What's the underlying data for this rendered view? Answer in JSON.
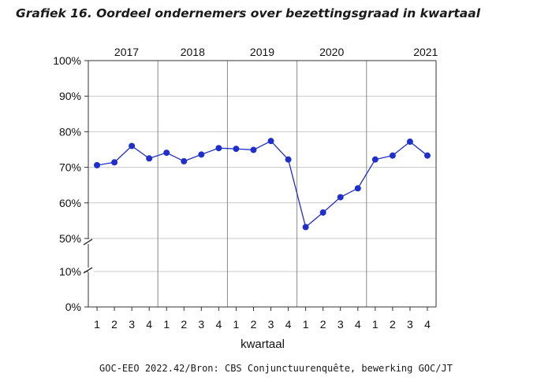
{
  "title": "Grafiek 16. Oordeel ondernemers over bezettingsgraad in kwartaal",
  "source": "GOC-EEO 2022.42/Bron: CBS Conjunctuurenquête, bewerking GOC/JT",
  "chart_data": {
    "type": "line",
    "xlabel": "kwartaal",
    "ylabel": "",
    "years": [
      "2017",
      "2018",
      "2019",
      "2020",
      "2021"
    ],
    "quarters": [
      "1",
      "2",
      "3",
      "4"
    ],
    "yticks_upper": [
      "100%",
      "90%",
      "80%",
      "70%",
      "60%",
      "50%"
    ],
    "yticks_lower": [
      "10%",
      "0%"
    ],
    "ylim_upper": [
      50,
      100
    ],
    "ylim_lower": [
      0,
      10
    ],
    "axis_break": true,
    "grid": true,
    "color": "#1f2fcc",
    "series": [
      {
        "x": [
          "2017 Q1",
          "2017 Q2",
          "2017 Q3",
          "2017 Q4",
          "2018 Q1",
          "2018 Q2",
          "2018 Q3",
          "2018 Q4",
          "2019 Q1",
          "2019 Q2",
          "2019 Q3",
          "2019 Q4",
          "2020 Q1",
          "2020 Q2",
          "2020 Q3",
          "2020 Q4",
          "2021 Q1",
          "2021 Q2",
          "2021 Q3",
          "2021 Q4"
        ],
        "values": [
          70.6,
          71.4,
          76.0,
          72.5,
          74.1,
          71.7,
          73.6,
          75.4,
          75.2,
          74.9,
          77.4,
          72.2,
          53.2,
          57.3,
          61.6,
          64.1,
          72.2,
          73.3,
          77.2,
          73.3
        ]
      }
    ]
  }
}
